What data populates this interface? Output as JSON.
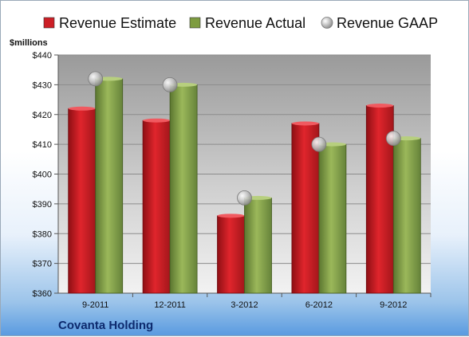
{
  "chart_data": {
    "type": "bar",
    "unit_label": "$millions",
    "company": "Covanta Holding",
    "categories": [
      "9-2011",
      "12-2011",
      "3-2012",
      "6-2012",
      "9-2012"
    ],
    "series": [
      {
        "name": "Revenue Estimate",
        "kind": "bar",
        "color": "#cc1f26",
        "values": [
          422,
          418,
          386,
          417,
          423
        ]
      },
      {
        "name": "Revenue Actual",
        "kind": "bar",
        "color": "#7e9c40",
        "values": [
          432,
          430,
          392,
          410,
          412
        ]
      },
      {
        "name": "Revenue GAAP",
        "kind": "marker",
        "color": "#b0b0b0",
        "values": [
          432,
          430,
          392,
          410,
          412
        ]
      }
    ],
    "ylim": [
      360,
      440
    ],
    "yticks": [
      360,
      370,
      380,
      390,
      400,
      410,
      420,
      430,
      440
    ],
    "ytick_labels": [
      "$360",
      "$370",
      "$380",
      "$390",
      "$400",
      "$410",
      "$420",
      "$430",
      "$440"
    ],
    "grid": true,
    "legend_position": "top"
  }
}
